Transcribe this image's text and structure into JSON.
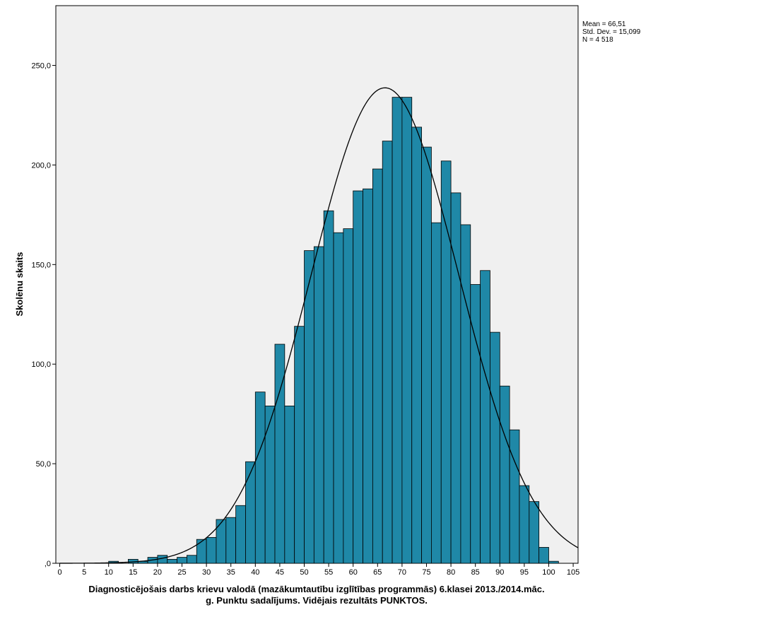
{
  "chart_data": {
    "type": "bar",
    "subtype": "histogram",
    "xlabel_lines": [
      "Diagnosticējošais darbs krievu valodā (mazākumtautību izglītības programmās) 6.klasei 2013./2014.māc.",
      "g. Punktu sadalījums. Vidējais rezultāts PUNKTOS."
    ],
    "ylabel": "Skolēnu skaits",
    "xlim": [
      -0.8,
      106
    ],
    "ylim": [
      0,
      280
    ],
    "x_ticks": [
      0,
      5,
      10,
      15,
      20,
      25,
      30,
      35,
      40,
      45,
      50,
      55,
      60,
      65,
      70,
      75,
      80,
      85,
      90,
      95,
      100,
      105
    ],
    "x_tick_labels": [
      "0",
      "5",
      "10",
      "15",
      "20",
      "25",
      "30",
      "35",
      "40",
      "45",
      "50",
      "55",
      "60",
      "65",
      "70",
      "75",
      "80",
      "85",
      "90",
      "95",
      "100",
      "105"
    ],
    "y_ticks": [
      0,
      50,
      100,
      150,
      200,
      250
    ],
    "y_tick_labels": [
      ",0",
      "50,0",
      "100,0",
      "150,0",
      "200,0",
      "250,0"
    ],
    "grid": false,
    "bin_width": 2,
    "bin_starts": [
      10,
      14,
      16,
      18,
      20,
      22,
      24,
      26,
      28,
      30,
      32,
      34,
      36,
      38,
      40,
      42,
      44,
      46,
      48,
      50,
      52,
      54,
      56,
      58,
      60,
      62,
      64,
      66,
      68,
      70,
      72,
      74,
      76,
      78,
      80,
      82,
      84,
      86,
      88,
      90,
      92,
      94,
      96,
      98,
      100
    ],
    "counts": [
      1,
      2,
      1,
      3,
      4,
      2,
      3,
      4,
      12,
      13,
      22,
      23,
      29,
      51,
      86,
      79,
      110,
      79,
      119,
      157,
      159,
      177,
      166,
      168,
      187,
      188,
      198,
      212,
      234,
      234,
      219,
      209,
      171,
      202,
      186,
      170,
      140,
      147,
      116,
      89,
      67,
      39,
      31,
      8,
      1
    ],
    "normal_curve": {
      "mean": 66.51,
      "std": 15.099,
      "n": 4518
    },
    "stats_lines": [
      "Mean = 66,51",
      "Std. Dev. = 15,099",
      "N = 4 518"
    ],
    "colors": {
      "bar_fill": "#1f88a7",
      "bar_stroke": "#000000",
      "plot_bg": "#f0f0f0",
      "curve": "#000000"
    }
  }
}
